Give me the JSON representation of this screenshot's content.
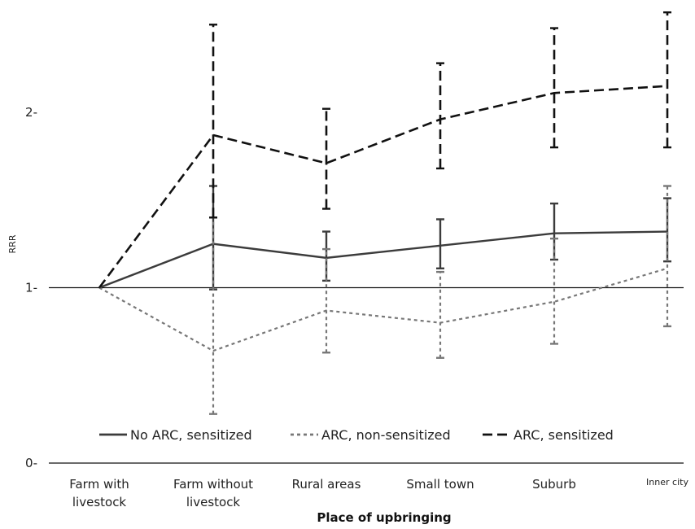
{
  "chart_data": {
    "type": "line",
    "title": "",
    "xlabel": "Place of upbringing",
    "ylabel": "RRR",
    "ylim": [
      0,
      2.6
    ],
    "yticks": [
      {
        "value": 0,
        "label": "0-"
      },
      {
        "value": 1,
        "label": "1-"
      },
      {
        "value": 2,
        "label": "2-"
      }
    ],
    "reference_line": 1,
    "categories": [
      "Farm with livestock",
      "Farm without livestock",
      "Rural areas",
      "Small town",
      "Suburb",
      "Inner city"
    ],
    "category_lines": [
      [
        "Farm with",
        "livestock"
      ],
      [
        "Farm without",
        "livestock"
      ],
      [
        "Rural areas"
      ],
      [
        "Small town"
      ],
      [
        "Suburb"
      ],
      [
        "Inner city"
      ]
    ],
    "legend_position": "bottom",
    "series": [
      {
        "name": "No ARC, sensitized",
        "color": "#3c3c3c",
        "dash": "solid",
        "values": [
          1.0,
          1.25,
          1.17,
          1.24,
          1.31,
          1.32
        ],
        "lower": [
          null,
          0.99,
          1.04,
          1.11,
          1.16,
          1.15
        ],
        "upper": [
          null,
          1.58,
          1.32,
          1.39,
          1.48,
          1.51
        ]
      },
      {
        "name": "ARC, non-sensitized",
        "color": "#777777",
        "dash": "dotted",
        "values": [
          1.0,
          0.64,
          0.87,
          0.8,
          0.92,
          1.11
        ],
        "lower": [
          null,
          0.28,
          0.63,
          0.6,
          0.68,
          0.78
        ],
        "upper": [
          null,
          1.4,
          1.22,
          1.09,
          1.28,
          1.58
        ]
      },
      {
        "name": "ARC, sensitized",
        "color": "#111111",
        "dash": "dashed",
        "values": [
          1.0,
          1.87,
          1.71,
          1.96,
          2.11,
          2.15
        ],
        "lower": [
          null,
          1.4,
          1.45,
          1.68,
          1.8,
          1.8
        ],
        "upper": [
          null,
          2.5,
          2.02,
          2.28,
          2.48,
          2.57
        ]
      }
    ]
  }
}
